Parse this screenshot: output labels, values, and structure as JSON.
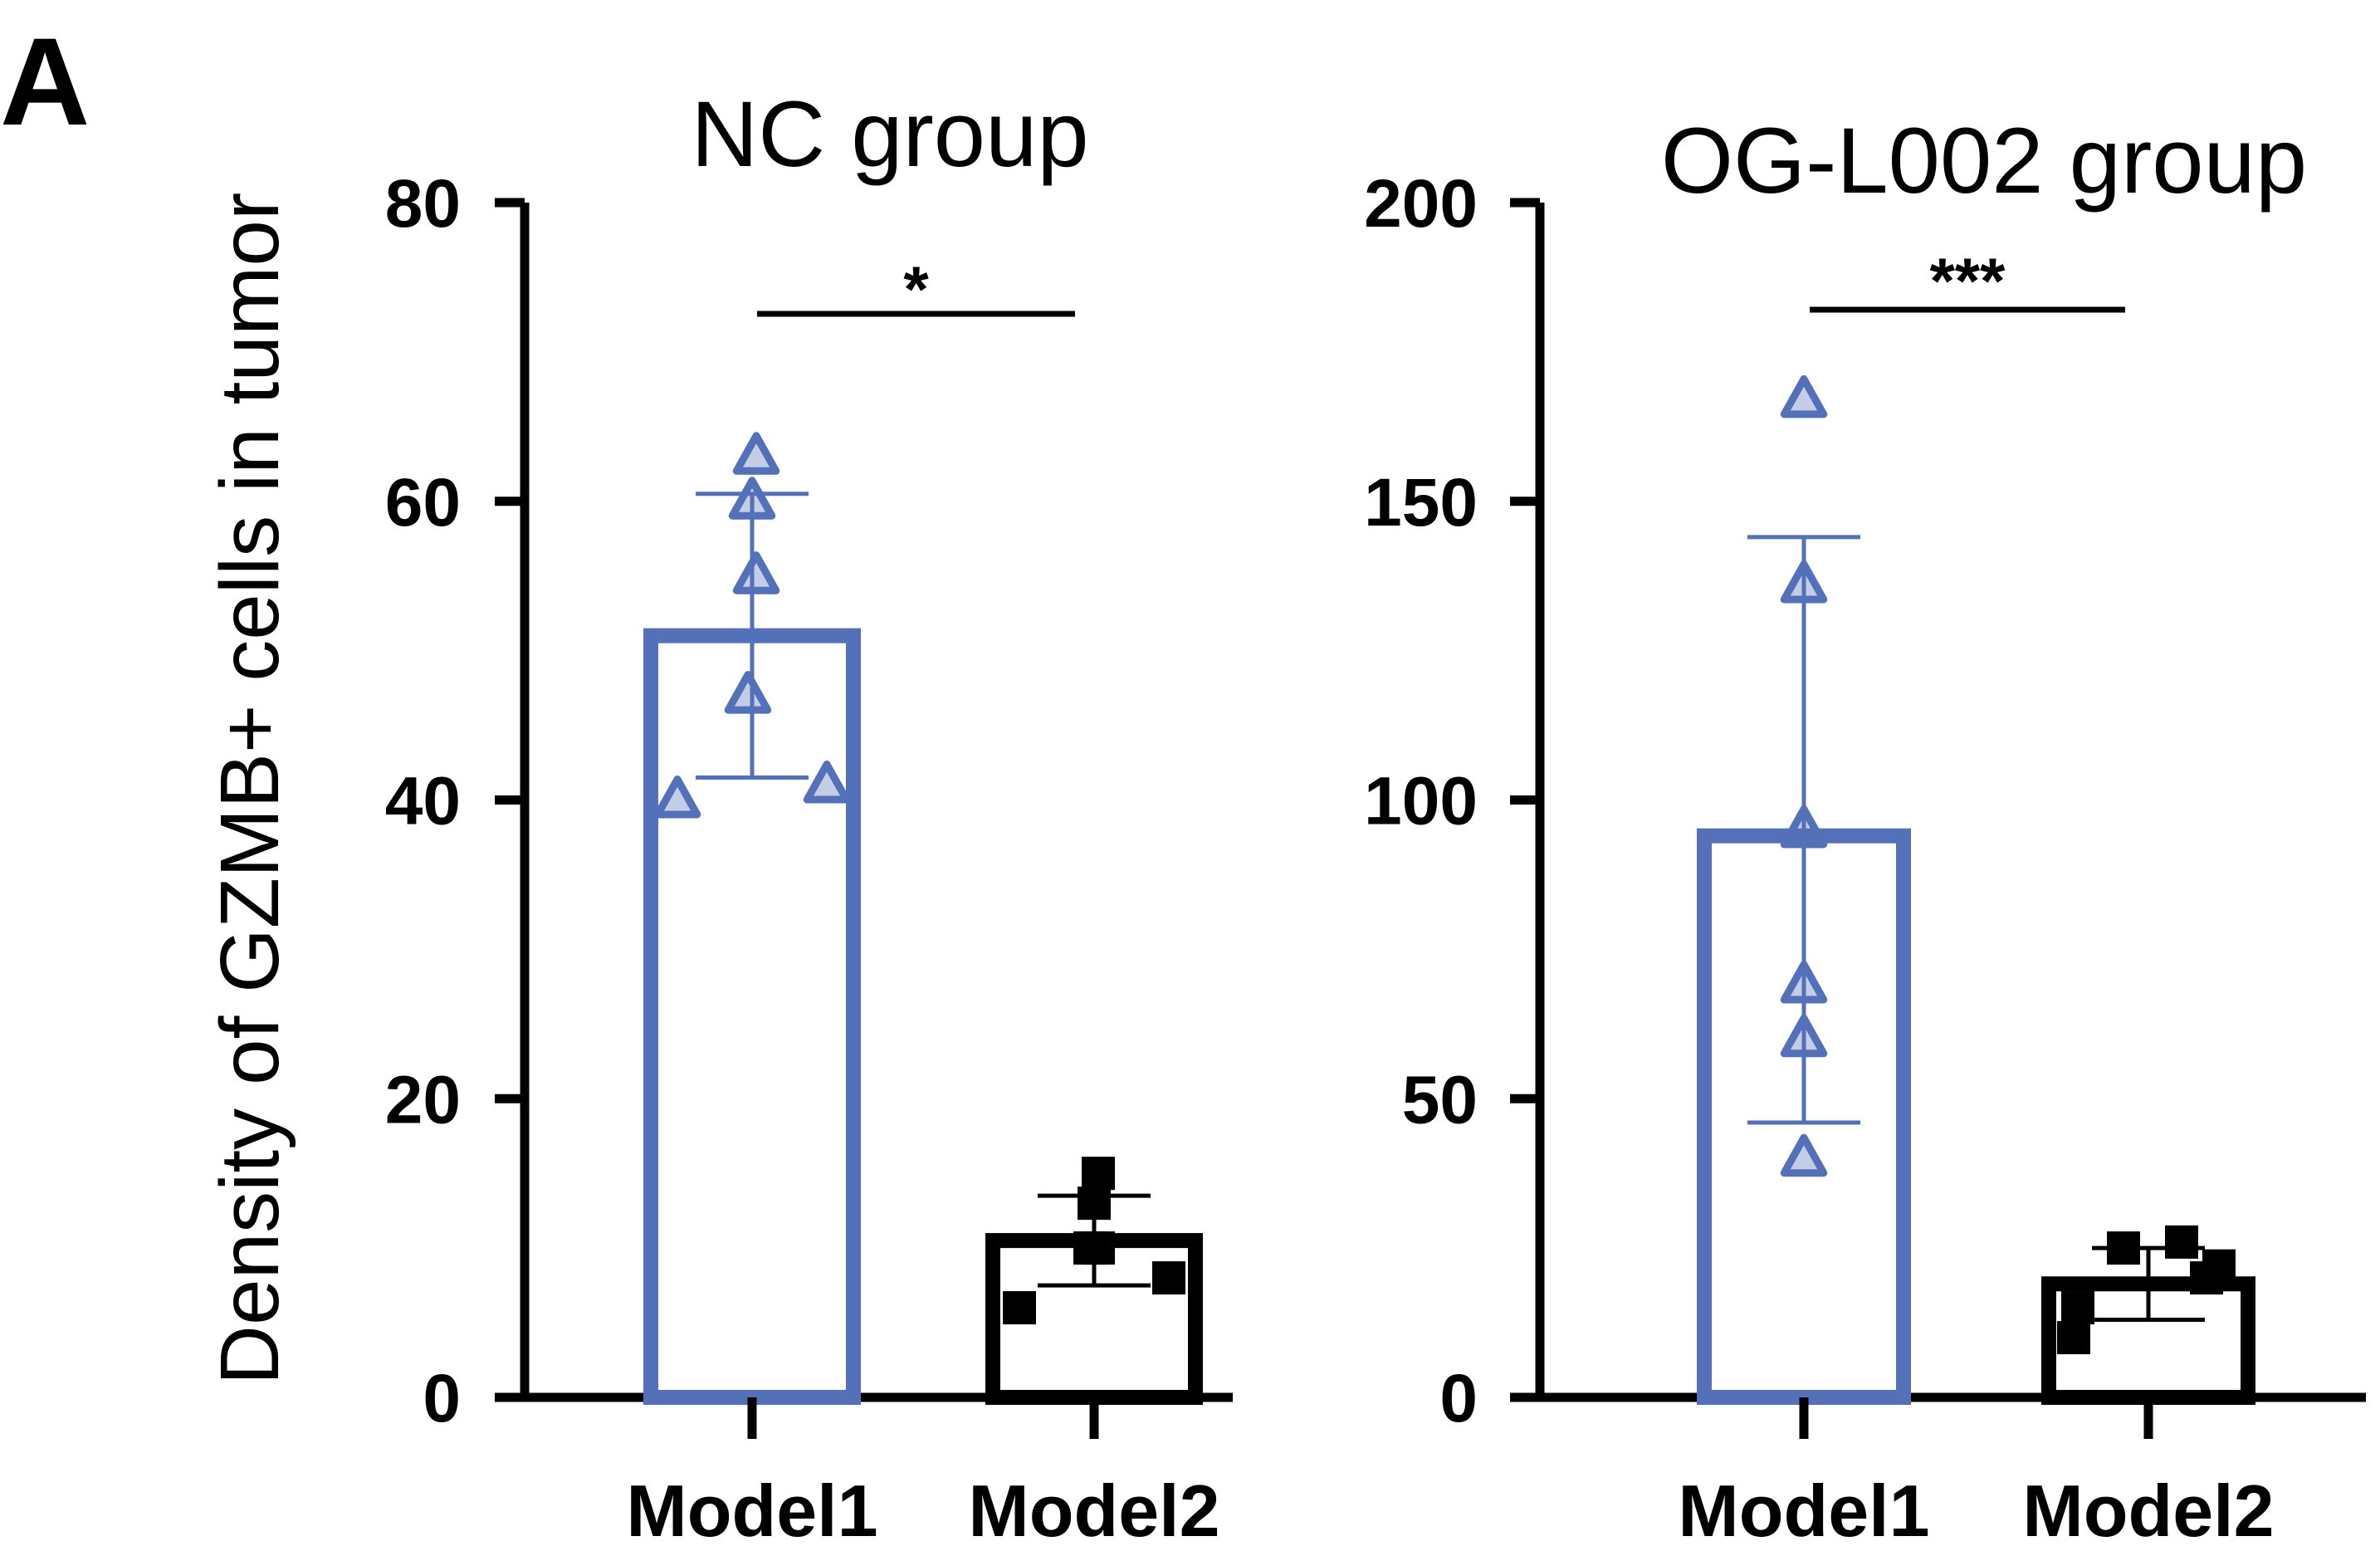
{
  "panel_label": "A",
  "y_axis_label": "Density of GZMB+ cells in tumor",
  "chart_data": [
    {
      "type": "bar",
      "title": "NC group",
      "ylabel": "Density of GZMB+ cells in tumor",
      "ylim": [
        0,
        80
      ],
      "yticks": [
        0,
        20,
        40,
        60,
        80
      ],
      "categories": [
        "Model1",
        "Model2"
      ],
      "bars": [
        {
          "category": "Model1",
          "mean": 51,
          "error": [
            41.5,
            60.5
          ],
          "points": [
            40,
            41,
            47,
            55,
            60,
            63
          ],
          "marker": "triangle",
          "color": "#5470b8"
        },
        {
          "category": "Model2",
          "mean": 10.5,
          "error": [
            7.5,
            13.5
          ],
          "points": [
            6,
            8,
            10,
            10,
            13,
            15
          ],
          "marker": "square",
          "color": "#000000"
        }
      ],
      "significance": "*",
      "grid": false,
      "legend": "none"
    },
    {
      "type": "bar",
      "title": "OG-L002 group",
      "ylabel": "",
      "ylim": [
        0,
        200
      ],
      "yticks": [
        0,
        50,
        100,
        150,
        200
      ],
      "categories": [
        "Model1",
        "Model2"
      ],
      "bars": [
        {
          "category": "Model1",
          "mean": 94,
          "error": [
            46,
            144
          ],
          "points": [
            40,
            60,
            69,
            95,
            136,
            167
          ],
          "marker": "triangle",
          "color": "#5470b8"
        },
        {
          "category": "Model2",
          "mean": 19,
          "error": [
            13,
            25
          ],
          "points": [
            10,
            15,
            20,
            22,
            25,
            26
          ],
          "marker": "square",
          "color": "#000000"
        }
      ],
      "significance": "***",
      "grid": false,
      "legend": "none"
    }
  ]
}
